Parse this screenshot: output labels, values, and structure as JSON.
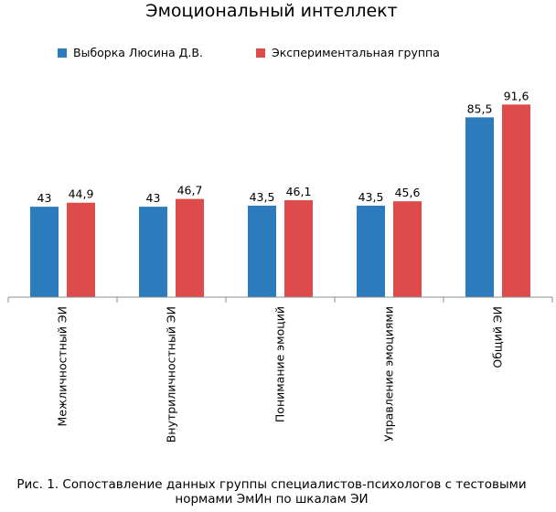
{
  "chart_data": {
    "type": "bar",
    "title": "Эмоциональный интеллект",
    "categories": [
      "Межличностный ЭИ",
      "Внутриличностный ЭИ",
      "Понимание эмоций",
      "Управление эмоциями",
      "Общий ЭИ"
    ],
    "series": [
      {
        "name": "Выборка Люсина Д.В.",
        "color": "#2b7bbd",
        "values": [
          43,
          43,
          43.5,
          43.5,
          85.5
        ],
        "labels": [
          "43",
          "43",
          "43,5",
          "43,5",
          "85,5"
        ]
      },
      {
        "name": "Экспериментальная группа",
        "color": "#dd4b4b",
        "values": [
          44.9,
          46.7,
          46.1,
          45.6,
          91.6
        ],
        "labels": [
          "44,9",
          "46,7",
          "46,1",
          "45,6",
          "91,6"
        ]
      }
    ],
    "ylim": [
      0,
      100
    ],
    "grid": false,
    "legend_position": "top"
  },
  "caption": "Рис. 1. Сопоставление данных группы специалистов-психологов с тестовыми нормами ЭмИн по шкалам ЭИ"
}
